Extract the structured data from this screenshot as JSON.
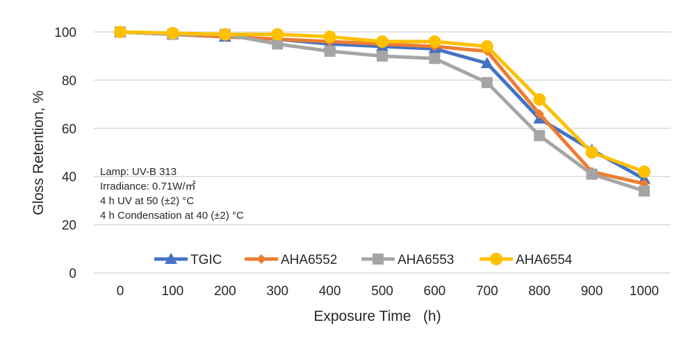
{
  "chart_data": {
    "type": "line",
    "title": "",
    "xlabel": "Exposure Time   (h)",
    "ylabel": "Gloss Retention, %",
    "x": [
      0,
      100,
      200,
      300,
      400,
      500,
      600,
      700,
      800,
      900,
      1000
    ],
    "ylim": [
      0,
      100
    ],
    "yticks": [
      0,
      20,
      40,
      60,
      80,
      100
    ],
    "grid": true,
    "legend_position": "bottom-inside",
    "series": [
      {
        "name": "TGIC",
        "color": "#4472C4",
        "marker": "triangle",
        "values": [
          100,
          99,
          98,
          97,
          95,
          94,
          93,
          87,
          64,
          51,
          39
        ]
      },
      {
        "name": "AHA6552",
        "color": "#ED7D31",
        "marker": "diamond",
        "values": [
          100,
          99,
          98,
          97,
          96,
          95,
          94,
          92,
          66,
          42,
          37
        ]
      },
      {
        "name": "AHA6553",
        "color": "#A5A5A5",
        "marker": "square",
        "values": [
          100,
          99,
          99,
          95,
          92,
          90,
          89,
          79,
          57,
          41,
          34
        ]
      },
      {
        "name": "AHA6554",
        "color": "#FFC000",
        "marker": "circle",
        "values": [
          100,
          99.5,
          99,
          99,
          98,
          96,
          96,
          94,
          72,
          50,
          42
        ]
      }
    ],
    "annotations": [
      "Lamp: UV-B 313",
      "Irradiance: 0.71W/㎡",
      "4 h UV at 50 (±2) °C",
      "4 h Condensation at 40 (±2) °C"
    ]
  }
}
